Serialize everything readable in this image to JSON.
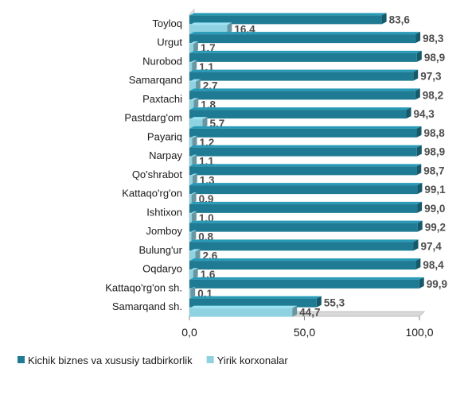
{
  "chart_data": {
    "type": "bar",
    "orientation": "horizontal",
    "categories": [
      "Toyloq",
      "Urgut",
      "Nurobod",
      "Samarqand",
      "Paxtachi",
      "Pastdarg'om",
      "Payariq",
      "Narpay",
      "Qo'shrabot",
      "Kattaqo'rg'on",
      "Ishtixon",
      "Jomboy",
      "Bulung'ur",
      "Oqdaryo",
      "Kattaqo'rg'on  sh.",
      "Samarqand sh."
    ],
    "series": [
      {
        "name": "Kichik biznes va xususiy tadbirkorlik",
        "color": "#1f7b93",
        "values": [
          83.6,
          98.3,
          98.9,
          97.3,
          98.2,
          94.3,
          98.8,
          98.9,
          98.7,
          99.1,
          99.0,
          99.2,
          97.4,
          98.4,
          99.9,
          55.3
        ],
        "labels": [
          "83,6",
          "98,3",
          "98,9",
          "97,3",
          "98,2",
          "94,3",
          "98,8",
          "98,9",
          "98,7",
          "99,1",
          "99,0",
          "99,2",
          "97,4",
          "98,4",
          "99,9",
          "55,3"
        ]
      },
      {
        "name": "Yirik korxonalar",
        "color": "#8fd2e1",
        "values": [
          16.4,
          1.7,
          1.1,
          2.7,
          1.8,
          5.7,
          1.2,
          1.1,
          1.3,
          0.9,
          1.0,
          0.8,
          2.6,
          1.6,
          0.1,
          44.7
        ],
        "labels": [
          "16,4",
          "1,7",
          "1,1",
          "2,7",
          "1,8",
          "5,7",
          "1,2",
          "1,1",
          "1,3",
          "0,9",
          "1,0",
          "0,8",
          "2,6",
          "1,6",
          "0,1",
          "44,7"
        ]
      }
    ],
    "x_ticks": [
      0,
      50,
      100
    ],
    "x_tick_labels": [
      "0,0",
      "50,0",
      "100,0"
    ],
    "xlim": [
      0,
      100
    ],
    "grid": false,
    "legend": "bottom"
  }
}
